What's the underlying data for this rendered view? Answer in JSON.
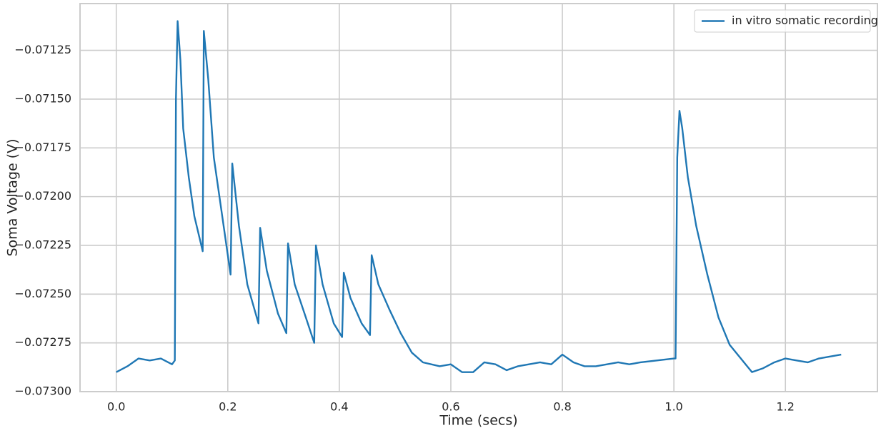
{
  "chart_data": {
    "type": "line",
    "xlabel": "Time (secs)",
    "ylabel": "Soma Voltage (V)",
    "x": [
      0.0,
      0.02,
      0.04,
      0.06,
      0.08,
      0.1,
      0.105,
      0.107,
      0.11,
      0.115,
      0.12,
      0.13,
      0.14,
      0.15,
      0.155,
      0.157,
      0.165,
      0.175,
      0.19,
      0.205,
      0.208,
      0.22,
      0.235,
      0.255,
      0.258,
      0.27,
      0.29,
      0.305,
      0.308,
      0.32,
      0.34,
      0.355,
      0.358,
      0.37,
      0.39,
      0.405,
      0.408,
      0.42,
      0.44,
      0.455,
      0.458,
      0.47,
      0.49,
      0.51,
      0.53,
      0.55,
      0.58,
      0.6,
      0.62,
      0.64,
      0.66,
      0.68,
      0.7,
      0.72,
      0.74,
      0.76,
      0.78,
      0.8,
      0.82,
      0.84,
      0.86,
      0.88,
      0.9,
      0.92,
      0.94,
      1.0,
      1.003,
      1.006,
      1.01,
      1.015,
      1.025,
      1.04,
      1.06,
      1.08,
      1.1,
      1.12,
      1.14,
      1.16,
      1.18,
      1.2,
      1.22,
      1.24,
      1.26,
      1.28,
      1.3
    ],
    "series": [
      {
        "name": "in vitro somatic recording",
        "color": "#1f77b4",
        "values": [
          -0.0729,
          -0.07287,
          -0.07283,
          -0.07284,
          -0.07283,
          -0.07286,
          -0.07284,
          -0.0715,
          -0.0711,
          -0.0713,
          -0.07165,
          -0.0719,
          -0.0721,
          -0.07222,
          -0.07228,
          -0.07115,
          -0.0714,
          -0.0718,
          -0.0721,
          -0.0724,
          -0.07183,
          -0.07215,
          -0.07245,
          -0.07265,
          -0.07216,
          -0.07238,
          -0.0726,
          -0.0727,
          -0.07224,
          -0.07245,
          -0.07262,
          -0.07275,
          -0.07225,
          -0.07245,
          -0.07265,
          -0.07272,
          -0.07239,
          -0.07252,
          -0.07265,
          -0.07271,
          -0.0723,
          -0.07245,
          -0.07258,
          -0.0727,
          -0.0728,
          -0.07285,
          -0.07287,
          -0.07286,
          -0.0729,
          -0.0729,
          -0.07285,
          -0.07286,
          -0.07289,
          -0.07287,
          -0.07286,
          -0.07285,
          -0.07286,
          -0.07281,
          -0.07285,
          -0.07287,
          -0.07287,
          -0.07286,
          -0.07285,
          -0.07286,
          -0.07285,
          -0.07283,
          -0.07283,
          -0.0718,
          -0.07156,
          -0.07165,
          -0.0719,
          -0.07215,
          -0.0724,
          -0.07262,
          -0.07276,
          -0.07283,
          -0.0729,
          -0.07288,
          -0.07285,
          -0.07283,
          -0.07284,
          -0.07285,
          -0.07283,
          -0.07282,
          -0.07281
        ]
      }
    ],
    "xlim": [
      -0.065,
      1.365
    ],
    "xticks": [
      {
        "value": 0,
        "label": "0.0"
      },
      0.2,
      0.4,
      0.6,
      0.8,
      {
        "value": 1,
        "label": "1.0"
      },
      1.2
    ],
    "ylim": [
      -0.073,
      -0.07101
    ],
    "yticks": [
      {
        "value": -0.073,
        "label": "−0.07300"
      },
      {
        "value": -0.07275,
        "label": "−0.07275"
      },
      {
        "value": -0.0725,
        "label": "−0.07250"
      },
      {
        "value": -0.07225,
        "label": "−0.07225"
      },
      {
        "value": -0.072,
        "label": "−0.07200"
      },
      {
        "value": -0.07175,
        "label": "−0.07175"
      },
      {
        "value": -0.0715,
        "label": "−0.07150"
      },
      {
        "value": -0.07125,
        "label": "−0.07125"
      }
    ],
    "grid": true,
    "legend": "upper right"
  }
}
